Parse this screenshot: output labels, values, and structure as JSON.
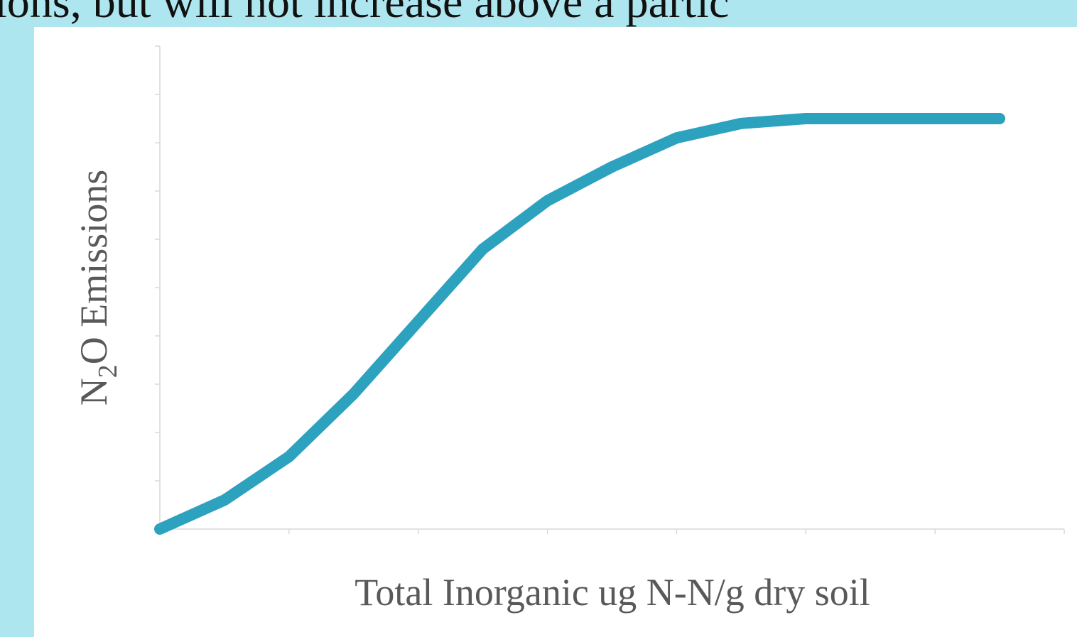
{
  "heading": "ions, but will not increase above a partic",
  "chart_data": {
    "type": "line",
    "xlabel": "Total Inorganic ug N-N/g dry soil",
    "ylabel": [
      "N",
      "2",
      "O Emissions"
    ],
    "x": [
      0,
      0.5,
      1,
      1.5,
      2,
      2.5,
      3,
      3.5,
      4,
      4.5,
      5,
      5.5,
      6,
      6.5
    ],
    "series": [
      {
        "color": "#2ca2bf",
        "values": [
          0,
          0.6,
          1.5,
          2.8,
          4.3,
          5.8,
          6.8,
          7.5,
          8.1,
          8.4,
          8.5,
          8.5,
          8.5,
          8.5
        ]
      }
    ],
    "xlim": [
      0,
      7
    ],
    "ylim": [
      0,
      10
    ],
    "xticks": [
      0,
      1,
      2,
      3,
      4,
      5,
      6,
      7
    ],
    "yticks": [
      0,
      1,
      2,
      3,
      4,
      5,
      6,
      7,
      8,
      9,
      10
    ]
  }
}
